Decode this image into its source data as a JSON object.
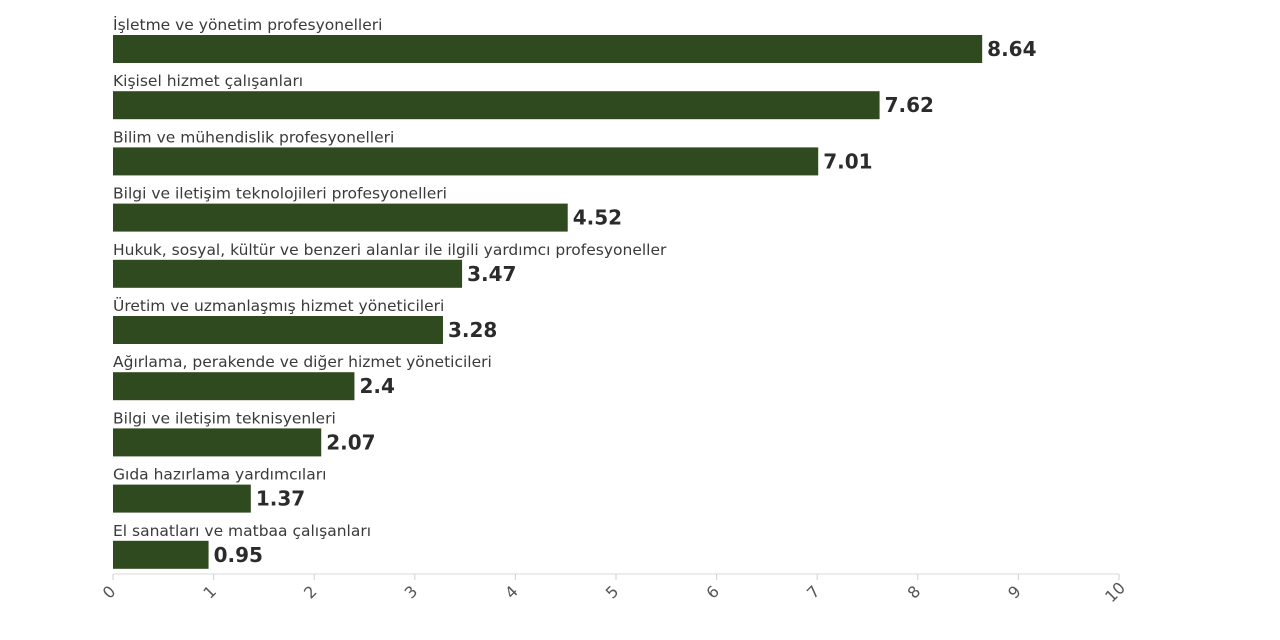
{
  "chart_data": {
    "type": "bar",
    "orientation": "horizontal",
    "categories": [
      "İşletme ve yönetim profesyonelleri",
      "Kişisel hizmet çalışanları",
      "Bilim ve mühendislik profesyonelleri",
      "Bilgi ve iletişim teknolojileri profesyonelleri",
      "Hukuk, sosyal, kültür ve benzeri alanlar ile ilgili yardımcı profesyoneller",
      "Üretim ve uzmanlaşmış hizmet yöneticileri",
      "Ağırlama, perakende ve diğer hizmet yöneticileri",
      "Bilgi ve iletişim teknisyenleri",
      "Gıda hazırlama yardımcıları",
      "El sanatları ve matbaa çalışanları"
    ],
    "values": [
      8.64,
      7.62,
      7.01,
      4.52,
      3.47,
      3.28,
      2.4,
      2.07,
      1.37,
      0.95
    ],
    "value_labels": [
      "8.64",
      "7.62",
      "7.01",
      "4.52",
      "3.47",
      "3.28",
      "2.4",
      "2.07",
      "1.37",
      "0.95"
    ],
    "xlim": [
      0,
      10
    ],
    "x_ticks": [
      "0",
      "1",
      "2",
      "3",
      "4",
      "5",
      "6",
      "7",
      "8",
      "9",
      "10"
    ],
    "bar_color": "#2f4a1e",
    "grid": false,
    "title": "",
    "xlabel": "",
    "ylabel": ""
  }
}
